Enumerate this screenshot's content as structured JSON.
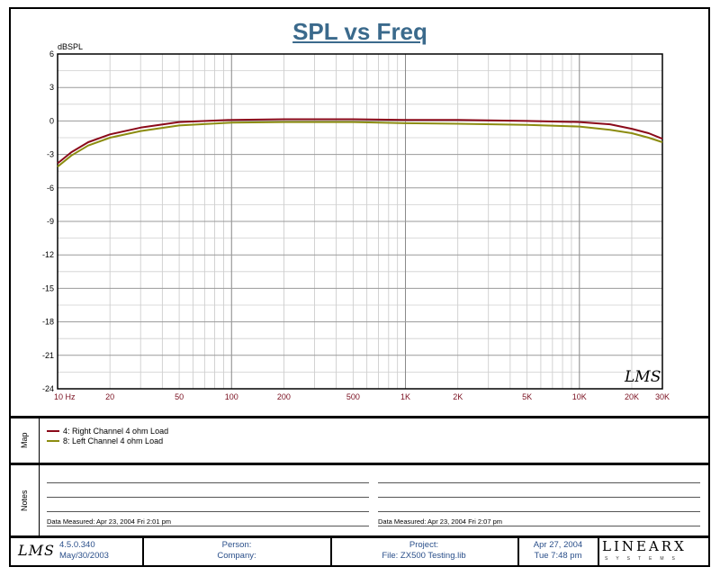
{
  "chart_data": {
    "type": "line",
    "title": "SPL vs Freq",
    "ylabel": "dBSPL",
    "xscale": "log",
    "xlim": [
      10,
      30000
    ],
    "ylim": [
      -24,
      6
    ],
    "grid": true,
    "yticks": [
      6,
      3,
      0,
      -3,
      -6,
      -9,
      -12,
      -15,
      -18,
      -21,
      -24
    ],
    "ytick_labels": [
      "6",
      "3",
      "0",
      "-3",
      "-6",
      "-9",
      "-12",
      "-15",
      "-18",
      "-21",
      "-24"
    ],
    "xticks": [
      10,
      20,
      50,
      100,
      200,
      500,
      1000,
      2000,
      5000,
      10000,
      20000,
      30000
    ],
    "xtick_labels": [
      "10  Hz",
      "20",
      "50",
      "100",
      "200",
      "500",
      "1K",
      "2K",
      "5K",
      "10K",
      "20K",
      "30K"
    ],
    "series": [
      {
        "name": "4: Right Channel 4 ohm Load",
        "color": "#8b0a1a",
        "x": [
          10,
          12,
          15,
          20,
          30,
          50,
          100,
          200,
          500,
          1000,
          2000,
          5000,
          10000,
          15000,
          20000,
          25000,
          30000
        ],
        "y": [
          -3.8,
          -2.8,
          -1.9,
          -1.2,
          -0.6,
          -0.1,
          0.1,
          0.15,
          0.15,
          0.1,
          0.1,
          0.0,
          -0.1,
          -0.3,
          -0.7,
          -1.1,
          -1.6
        ]
      },
      {
        "name": "8: Left Channel 4 ohm Load",
        "color": "#8c8c10",
        "x": [
          10,
          12,
          15,
          20,
          30,
          50,
          100,
          200,
          500,
          1000,
          2000,
          5000,
          10000,
          15000,
          20000,
          25000,
          30000
        ],
        "y": [
          -4.1,
          -3.1,
          -2.2,
          -1.5,
          -0.9,
          -0.4,
          -0.15,
          -0.1,
          -0.1,
          -0.2,
          -0.25,
          -0.35,
          -0.5,
          -0.8,
          -1.1,
          -1.5,
          -1.9
        ]
      }
    ],
    "watermark": "LMS"
  },
  "map": {
    "label": "Map"
  },
  "notes": {
    "label": "Notes",
    "left_measured": "Data Measured: Apr 23, 2004  Fri  2:01 pm",
    "right_measured": "Data Measured: Apr 23, 2004  Fri  2:07 pm"
  },
  "footer": {
    "logo": "LMS",
    "version": "4.5.0.340",
    "version_date": "May/30/2003",
    "person_label": "Person:",
    "company_label": "Company:",
    "project_label": "Project:",
    "file_label": "File: ZX500 Testing.lib",
    "date": "Apr 27, 2004",
    "time": "Tue  7:48 pm",
    "brand": "LINEARX",
    "brand_sub": "SYSTEMS"
  }
}
